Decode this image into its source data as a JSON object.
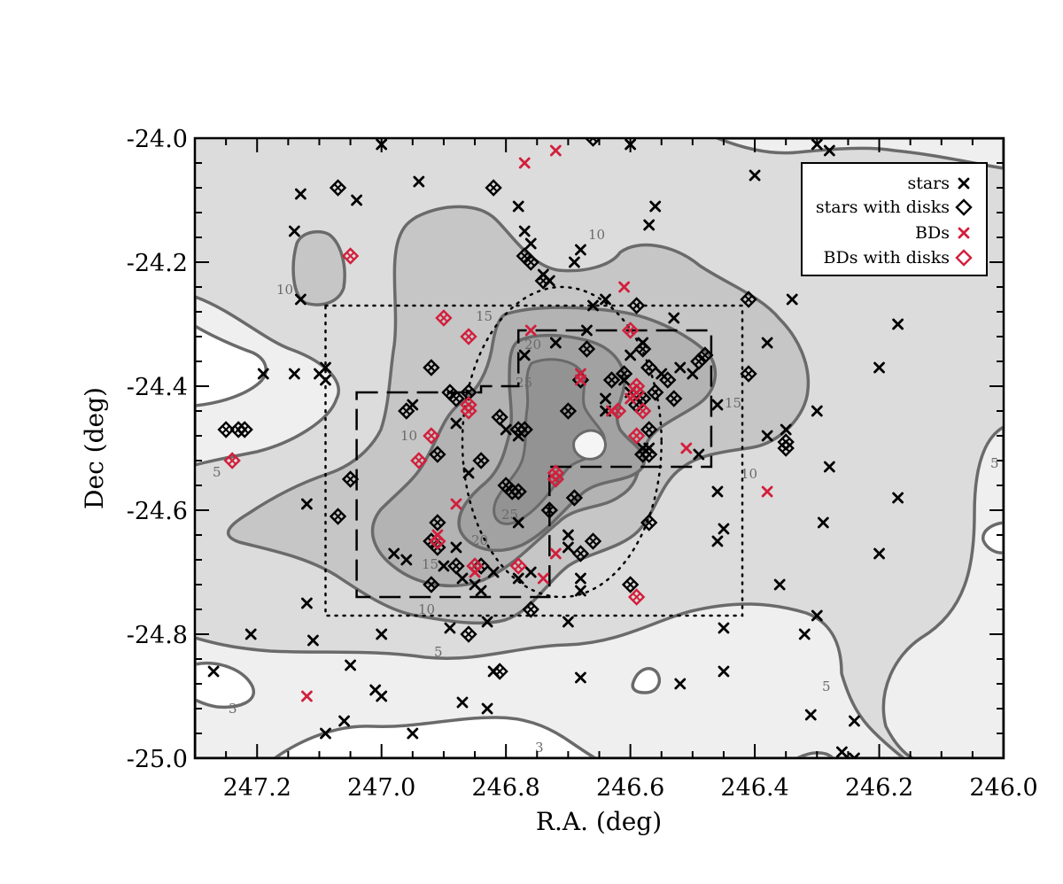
{
  "chart_data": {
    "type": "scatter",
    "xlabel": "R.A. (deg)",
    "ylabel": "Dec (deg)",
    "xlim": [
      247.3,
      246.0
    ],
    "ylim": [
      -25.0,
      -24.0
    ],
    "x_ticks": [
      247.2,
      247.0,
      246.8,
      246.6,
      246.4,
      246.2,
      246.0
    ],
    "y_ticks": [
      -24.0,
      -24.2,
      -24.4,
      -24.6,
      -24.8,
      -25.0
    ],
    "x_tick_labels": [
      "247.2",
      "247.0",
      "246.8",
      "246.6",
      "246.4",
      "246.2",
      "246.0"
    ],
    "y_tick_labels": [
      "-24.0",
      "-24.2",
      "-24.4",
      "-24.6",
      "-24.8",
      "-25.0"
    ],
    "legend": {
      "position": "top-right",
      "entries": [
        {
          "label": "stars",
          "marker": "x",
          "color": "#000000"
        },
        {
          "label": "stars with disks",
          "marker": "diamond",
          "color": "#000000"
        },
        {
          "label": "BDs",
          "marker": "x",
          "color": "#d21f3c"
        },
        {
          "label": "BDs with disks",
          "marker": "diamond",
          "color": "#d21f3c"
        }
      ]
    },
    "contour_labels": [
      "3",
      "5",
      "10",
      "15",
      "20",
      "25"
    ],
    "colors": {
      "stars": "#000000",
      "bds": "#d21f3c",
      "contour_line": "#6a6a6a",
      "fill_lt3": "#ffffff",
      "fill_3": "#efefef",
      "fill_5": "#dcdcdc",
      "fill_10": "#c6c6c6",
      "fill_15": "#b3b3b3",
      "fill_20": "#a2a2a2",
      "fill_25": "#939393"
    },
    "regions": [
      {
        "style": "dotted-rectangle",
        "ra": [
          247.09,
          246.42
        ],
        "dec": [
          -24.27,
          -24.77
        ]
      },
      {
        "style": "dotted-ellipse",
        "ra_center": 246.71,
        "dec_center": -24.49,
        "ra_halfwidth": 0.16,
        "dec_halfwidth": 0.25
      },
      {
        "style": "dashed-polygon",
        "ra": [
          247.04,
          246.84,
          246.84,
          246.78,
          246.78,
          246.47,
          246.47,
          246.73,
          246.73,
          247.04
        ],
        "dec": [
          -24.41,
          -24.41,
          -24.4,
          -24.4,
          -24.31,
          -24.31,
          -24.53,
          -24.53,
          -24.74,
          -24.74
        ]
      }
    ],
    "series": [
      {
        "name": "stars",
        "marker": "x",
        "points": [
          [
            247.0,
            -24.01
          ],
          [
            246.6,
            -24.01
          ],
          [
            246.3,
            -24.01
          ],
          [
            246.28,
            -24.02
          ],
          [
            246.94,
            -24.07
          ],
          [
            246.4,
            -24.06
          ],
          [
            247.13,
            -24.09
          ],
          [
            247.04,
            -24.1
          ],
          [
            246.78,
            -24.11
          ],
          [
            246.56,
            -24.11
          ],
          [
            246.77,
            -24.15
          ],
          [
            246.57,
            -24.14
          ],
          [
            247.14,
            -24.15
          ],
          [
            246.76,
            -24.17
          ],
          [
            246.68,
            -24.18
          ],
          [
            246.69,
            -24.2
          ],
          [
            246.74,
            -24.22
          ],
          [
            246.73,
            -24.23
          ],
          [
            247.13,
            -24.26
          ],
          [
            246.34,
            -24.26
          ],
          [
            246.64,
            -24.26
          ],
          [
            246.66,
            -24.27
          ],
          [
            246.17,
            -24.3
          ],
          [
            246.53,
            -24.29
          ],
          [
            246.67,
            -24.31
          ],
          [
            246.38,
            -24.33
          ],
          [
            246.72,
            -24.33
          ],
          [
            246.58,
            -24.33
          ],
          [
            246.55,
            -24.38
          ],
          [
            246.77,
            -24.35
          ],
          [
            246.6,
            -24.35
          ],
          [
            246.52,
            -24.37
          ],
          [
            246.5,
            -24.38
          ],
          [
            246.46,
            -24.43
          ],
          [
            247.09,
            -24.37
          ],
          [
            247.1,
            -24.38
          ],
          [
            247.14,
            -24.38
          ],
          [
            247.19,
            -24.38
          ],
          [
            247.09,
            -24.39
          ],
          [
            246.61,
            -24.39
          ],
          [
            246.6,
            -24.41
          ],
          [
            246.64,
            -24.42
          ],
          [
            246.64,
            -24.44
          ],
          [
            246.2,
            -24.37
          ],
          [
            246.3,
            -24.44
          ],
          [
            246.35,
            -24.47
          ],
          [
            246.88,
            -24.46
          ],
          [
            246.8,
            -24.47
          ],
          [
            246.78,
            -24.48
          ],
          [
            246.58,
            -24.5
          ],
          [
            246.49,
            -24.51
          ],
          [
            246.86,
            -24.54
          ],
          [
            246.95,
            -24.43
          ],
          [
            246.28,
            -24.53
          ],
          [
            246.57,
            -24.5
          ],
          [
            246.46,
            -24.57
          ],
          [
            246.17,
            -24.58
          ],
          [
            246.38,
            -24.48
          ],
          [
            247.12,
            -24.59
          ],
          [
            246.78,
            -24.62
          ],
          [
            246.29,
            -24.62
          ],
          [
            246.45,
            -24.63
          ],
          [
            246.46,
            -24.65
          ],
          [
            246.2,
            -24.67
          ],
          [
            246.7,
            -24.64
          ],
          [
            246.7,
            -24.66
          ],
          [
            246.88,
            -24.66
          ],
          [
            246.98,
            -24.67
          ],
          [
            246.96,
            -24.68
          ],
          [
            246.9,
            -24.69
          ],
          [
            246.82,
            -24.7
          ],
          [
            246.87,
            -24.71
          ],
          [
            246.85,
            -24.72
          ],
          [
            246.78,
            -24.71
          ],
          [
            246.76,
            -24.7
          ],
          [
            246.68,
            -24.71
          ],
          [
            246.84,
            -24.73
          ],
          [
            246.36,
            -24.72
          ],
          [
            246.68,
            -24.73
          ],
          [
            247.12,
            -24.75
          ],
          [
            246.7,
            -24.78
          ],
          [
            246.83,
            -24.78
          ],
          [
            246.45,
            -24.79
          ],
          [
            246.3,
            -24.77
          ],
          [
            247.21,
            -24.8
          ],
          [
            247.11,
            -24.81
          ],
          [
            247.0,
            -24.8
          ],
          [
            246.89,
            -24.79
          ],
          [
            246.32,
            -24.8
          ],
          [
            247.27,
            -24.86
          ],
          [
            247.05,
            -24.85
          ],
          [
            246.45,
            -24.86
          ],
          [
            246.82,
            -24.86
          ],
          [
            246.68,
            -24.87
          ],
          [
            246.52,
            -24.88
          ],
          [
            247.01,
            -24.89
          ],
          [
            247.0,
            -24.9
          ],
          [
            246.87,
            -24.91
          ],
          [
            246.83,
            -24.92
          ],
          [
            246.31,
            -24.93
          ],
          [
            246.24,
            -24.94
          ],
          [
            247.06,
            -24.94
          ],
          [
            246.95,
            -24.96
          ],
          [
            247.09,
            -24.96
          ],
          [
            246.26,
            -24.99
          ],
          [
            246.24,
            -25.0
          ]
        ]
      },
      {
        "name": "stars with disks",
        "marker": "diamond",
        "points": [
          [
            247.07,
            -24.08
          ],
          [
            246.82,
            -24.08
          ],
          [
            246.66,
            -24.0
          ],
          [
            246.77,
            -24.19
          ],
          [
            246.76,
            -24.2
          ],
          [
            246.74,
            -24.23
          ],
          [
            246.41,
            -24.26
          ],
          [
            246.59,
            -24.27
          ],
          [
            246.58,
            -24.34
          ],
          [
            246.67,
            -24.34
          ],
          [
            246.68,
            -24.39
          ],
          [
            246.54,
            -24.39
          ],
          [
            246.57,
            -24.37
          ],
          [
            246.92,
            -24.37
          ],
          [
            246.61,
            -24.38
          ],
          [
            246.48,
            -24.35
          ],
          [
            246.49,
            -24.36
          ],
          [
            246.63,
            -24.39
          ],
          [
            246.56,
            -24.41
          ],
          [
            246.53,
            -24.42
          ],
          [
            246.59,
            -24.43
          ],
          [
            246.58,
            -24.42
          ],
          [
            246.89,
            -24.41
          ],
          [
            246.88,
            -24.42
          ],
          [
            246.7,
            -24.44
          ],
          [
            246.81,
            -24.45
          ],
          [
            246.78,
            -24.47
          ],
          [
            246.77,
            -24.47
          ],
          [
            246.41,
            -24.38
          ],
          [
            246.96,
            -24.44
          ],
          [
            247.25,
            -24.47
          ],
          [
            247.23,
            -24.47
          ],
          [
            247.22,
            -24.47
          ],
          [
            246.35,
            -24.49
          ],
          [
            246.35,
            -24.5
          ],
          [
            246.91,
            -24.51
          ],
          [
            246.84,
            -24.52
          ],
          [
            246.57,
            -24.51
          ],
          [
            246.57,
            -24.47
          ],
          [
            246.58,
            -24.51
          ],
          [
            247.05,
            -24.55
          ],
          [
            246.8,
            -24.56
          ],
          [
            246.79,
            -24.57
          ],
          [
            246.78,
            -24.57
          ],
          [
            246.69,
            -24.58
          ],
          [
            246.73,
            -24.6
          ],
          [
            247.07,
            -24.61
          ],
          [
            246.91,
            -24.62
          ],
          [
            246.57,
            -24.62
          ],
          [
            246.92,
            -24.65
          ],
          [
            246.91,
            -24.66
          ],
          [
            246.88,
            -24.69
          ],
          [
            246.84,
            -24.69
          ],
          [
            246.68,
            -24.67
          ],
          [
            246.66,
            -24.65
          ],
          [
            246.92,
            -24.72
          ],
          [
            246.6,
            -24.72
          ],
          [
            246.86,
            -24.8
          ],
          [
            246.81,
            -24.86
          ],
          [
            246.76,
            -24.76
          ],
          [
            246.86,
            -24.41
          ]
        ]
      },
      {
        "name": "BDs",
        "marker": "x",
        "points": [
          [
            246.72,
            -24.02
          ],
          [
            246.77,
            -24.04
          ],
          [
            246.61,
            -24.24
          ],
          [
            246.76,
            -24.31
          ],
          [
            246.68,
            -24.38
          ],
          [
            246.68,
            -24.39
          ],
          [
            246.6,
            -24.42
          ],
          [
            246.63,
            -24.44
          ],
          [
            246.51,
            -24.5
          ],
          [
            246.38,
            -24.57
          ],
          [
            246.88,
            -24.59
          ],
          [
            246.91,
            -24.64
          ],
          [
            246.72,
            -24.67
          ],
          [
            246.74,
            -24.71
          ],
          [
            246.85,
            -24.7
          ],
          [
            247.12,
            -24.9
          ]
        ]
      },
      {
        "name": "BDs with disks",
        "marker": "diamond",
        "points": [
          [
            247.05,
            -24.19
          ],
          [
            246.9,
            -24.29
          ],
          [
            246.86,
            -24.32
          ],
          [
            246.6,
            -24.31
          ],
          [
            246.59,
            -24.4
          ],
          [
            246.59,
            -24.41
          ],
          [
            246.86,
            -24.43
          ],
          [
            246.86,
            -24.44
          ],
          [
            246.62,
            -24.44
          ],
          [
            246.58,
            -24.44
          ],
          [
            246.92,
            -24.48
          ],
          [
            246.59,
            -24.48
          ],
          [
            246.94,
            -24.52
          ],
          [
            246.72,
            -24.55
          ],
          [
            246.72,
            -24.54
          ],
          [
            247.24,
            -24.52
          ],
          [
            246.91,
            -24.65
          ],
          [
            246.85,
            -24.69
          ],
          [
            246.78,
            -24.69
          ],
          [
            246.59,
            -24.74
          ]
        ]
      }
    ]
  }
}
